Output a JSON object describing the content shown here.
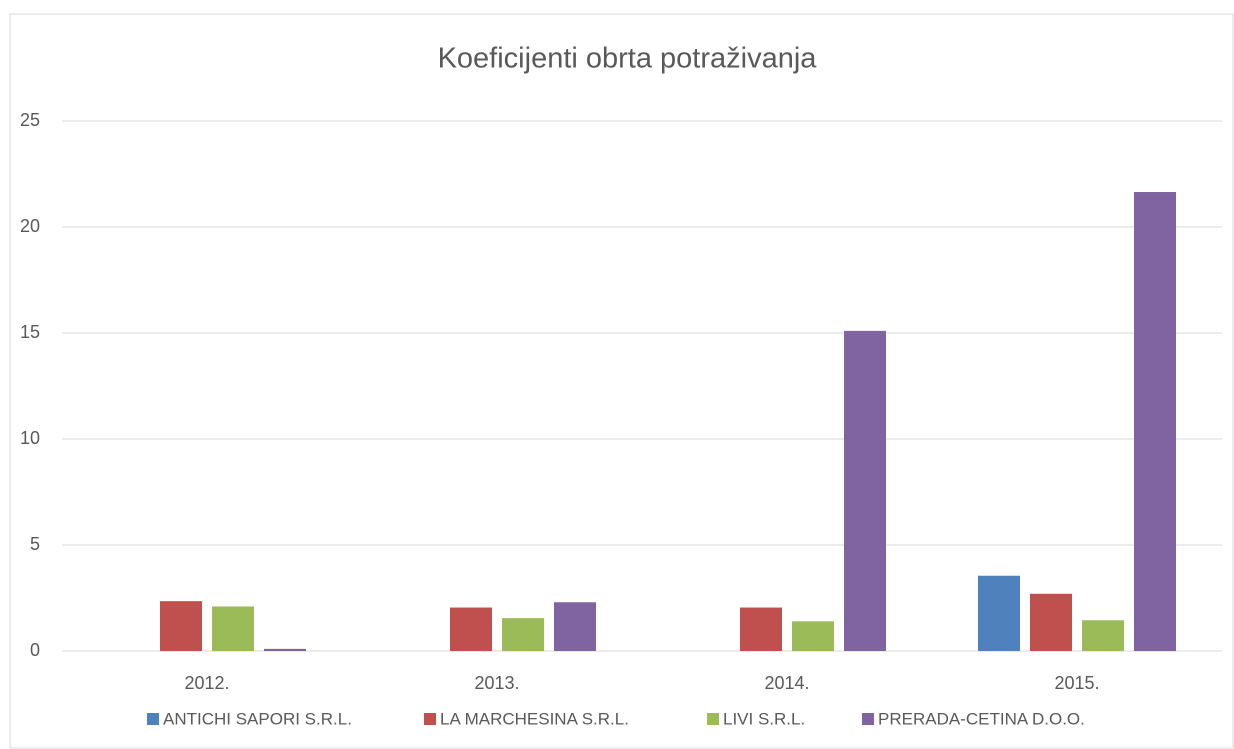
{
  "chart_data": {
    "type": "bar",
    "title": "Koeficijenti obrta potraživanja",
    "categories": [
      "2012.",
      "2013.",
      "2014.",
      "2015."
    ],
    "series": [
      {
        "name": "ANTICHI SAPORI S.R.L.",
        "color": "#4f81bd",
        "values": [
          null,
          null,
          null,
          3.55
        ]
      },
      {
        "name": "LA MARCHESINA S.R.L.",
        "color": "#c0504d",
        "values": [
          2.35,
          2.05,
          2.05,
          2.7
        ]
      },
      {
        "name": "LIVI S.R.L.",
        "color": "#9bbb59",
        "values": [
          2.1,
          1.55,
          1.4,
          1.45
        ]
      },
      {
        "name": "PRERADA-CETINA D.O.O.",
        "color": "#8064a2",
        "values": [
          0.1,
          2.3,
          15.1,
          21.65
        ]
      }
    ],
    "ylim": [
      0,
      25
    ],
    "yticks": [
      0,
      5,
      10,
      15,
      20,
      25
    ],
    "grid": true,
    "legend": "bottom"
  }
}
